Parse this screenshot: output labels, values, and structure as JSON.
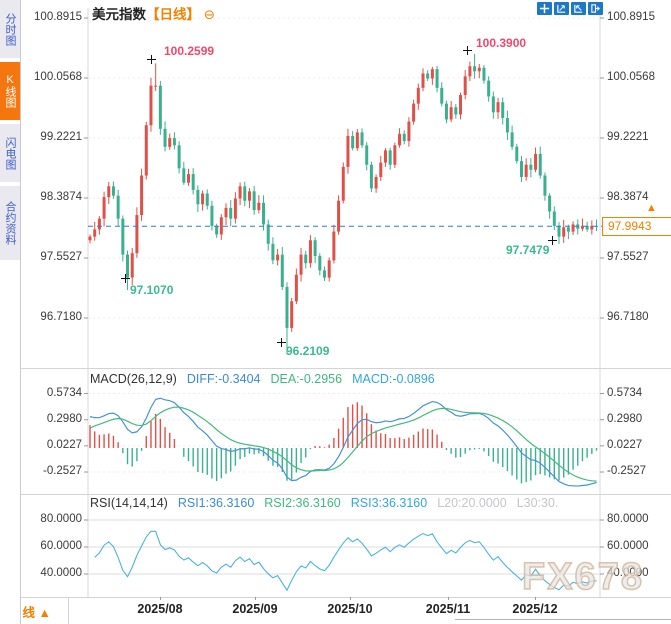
{
  "header": {
    "title": "美元指数",
    "period_tag": "【日线】",
    "collapse_icon": "⊖"
  },
  "toolbar": {
    "buttons": [
      {
        "name": "crosshair-move"
      },
      {
        "name": "zoom-horizontal"
      },
      {
        "name": "zoom-vertical"
      },
      {
        "name": "pan-reset"
      }
    ]
  },
  "sidebar": {
    "items": [
      {
        "label": "分时图",
        "selected": false
      },
      {
        "label": "K线图",
        "selected": true
      },
      {
        "label": "闪电图",
        "selected": false
      },
      {
        "label": "合约资料",
        "selected": false
      }
    ]
  },
  "price_axis": [
    "100.8915",
    "100.0568",
    "99.2221",
    "98.3874",
    "97.5527",
    "96.7180"
  ],
  "current_price": {
    "value": "97.9943",
    "marker": "▲"
  },
  "annotations": {
    "high1": "100.2599",
    "high2": "100.3900",
    "low1": "97.1070",
    "low2": "96.2109",
    "low3": "97.7479"
  },
  "macd_panel": {
    "name": "MACD(26,12,9)",
    "diff": "DIFF:-0.3404",
    "dea": "DEA:-0.2956",
    "macd": "MACD:-0.0896",
    "axis": [
      "0.5734",
      "0.2980",
      "0.0227",
      "-0.2527"
    ]
  },
  "rsi_panel": {
    "name": "RSI(14,14,14)",
    "rsi1": "RSI1:36.3160",
    "rsi2": "RSI2:36.3160",
    "rsi3": "RSI3:36.3160",
    "l20": "L20:20.0000",
    "l30": "L30:30.",
    "axis": [
      "80.0000",
      "60.0000",
      "40.0000"
    ]
  },
  "time_axis": {
    "period": "日线",
    "period_arrow": "▲",
    "labels": [
      "2025/08",
      "2025/09",
      "2025/10",
      "2025/11",
      "2025/12"
    ]
  },
  "watermark": "FX678",
  "chart_data": {
    "type": "candlestick",
    "title": "美元指数 日线",
    "ylim": [
      96.718,
      100.8915
    ],
    "yticks": [
      100.8915,
      100.0568,
      99.2221,
      98.3874,
      97.5527,
      96.718
    ],
    "current_price": 97.9943,
    "x_labels": [
      "2025/08",
      "2025/09",
      "2025/10",
      "2025/11",
      "2025/12"
    ],
    "closes": [
      97.85,
      97.95,
      98.1,
      98.4,
      98.55,
      98.42,
      98.1,
      97.6,
      97.28,
      97.62,
      98.15,
      98.7,
      99.4,
      99.95,
      99.95,
      99.35,
      99.1,
      99.22,
      99.12,
      98.8,
      98.6,
      98.72,
      98.5,
      98.3,
      98.45,
      98.28,
      98.0,
      97.88,
      98.12,
      98.25,
      98.1,
      98.38,
      98.55,
      98.35,
      98.48,
      98.22,
      98.32,
      98.02,
      97.75,
      97.52,
      97.6,
      97.15,
      96.58,
      96.95,
      97.32,
      97.6,
      97.48,
      97.8,
      97.58,
      97.38,
      97.28,
      97.52,
      97.92,
      98.35,
      98.82,
      99.25,
      99.08,
      99.3,
      99.12,
      98.85,
      98.52,
      98.68,
      98.88,
      99.05,
      98.85,
      99.12,
      99.28,
      99.18,
      99.45,
      99.7,
      99.92,
      100.12,
      100.05,
      100.18,
      99.92,
      99.7,
      99.48,
      99.65,
      99.55,
      99.82,
      100.08,
      100.22,
      100.15,
      100.2,
      100.02,
      99.8,
      99.58,
      99.72,
      99.5,
      99.3,
      99.1,
      98.9,
      98.68,
      98.85,
      98.78,
      99.0,
      98.7,
      98.42,
      98.2,
      98.0,
      97.85,
      97.98,
      97.92,
      98.02,
      97.96,
      98.0,
      97.95,
      98.0,
      97.9943
    ],
    "wick_overrides": {
      "8": {
        "low": 97.107
      },
      "14": {
        "high": 100.2599
      },
      "42": {
        "low": 96.2109
      },
      "82": {
        "high": 100.39
      },
      "100": {
        "low": 97.7479
      }
    },
    "extremes": [
      {
        "index": 14,
        "type": "high",
        "value": 100.2599
      },
      {
        "index": 82,
        "type": "high",
        "value": 100.39
      },
      {
        "index": 8,
        "type": "low",
        "value": 97.107
      },
      {
        "index": 42,
        "type": "low",
        "value": 96.2109
      },
      {
        "index": 100,
        "type": "low",
        "value": 97.7479
      }
    ],
    "macd": {
      "params": [
        26,
        12,
        9
      ],
      "diff": -0.3404,
      "dea": -0.2956,
      "macd": -0.0896,
      "yticks": [
        0.5734,
        0.298,
        0.0227,
        -0.2527
      ]
    },
    "rsi": {
      "params": [
        14,
        14,
        14
      ],
      "rsi1": 36.316,
      "rsi2": 36.316,
      "rsi3": 36.316,
      "l20": 20.0,
      "l30": 30.0,
      "yticks": [
        80,
        60,
        40
      ]
    },
    "colors": {
      "up": "#e0504a",
      "down": "#3cb08e",
      "diff_line": "#4a90d9",
      "dea_line": "#45b97c",
      "rsi_line": "#4fb3d9",
      "current_line": "#2f7fd0",
      "accent": "#f08200"
    }
  }
}
